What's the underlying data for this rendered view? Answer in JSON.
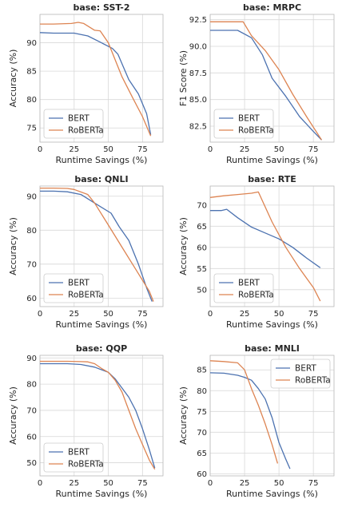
{
  "colors": {
    "BERT": "#4c72b0",
    "RoBERTa": "#dd8452",
    "grid": "#d8d8d8",
    "frame": "#b8b8b8"
  },
  "chart_data": [
    {
      "type": "line",
      "title": "base: SST-2",
      "xlabel": "Runtime Savings (%)",
      "ylabel": "Accuracy (%)",
      "xlim": [
        0,
        90
      ],
      "ylim": [
        72.5,
        95
      ],
      "xticks": [
        0,
        25,
        50,
        75
      ],
      "yticks": [
        75,
        80,
        85,
        90
      ],
      "grid": true,
      "legend": "lower-left",
      "series": [
        {
          "name": "BERT",
          "x": [
            0,
            10,
            25,
            35,
            45,
            53,
            57,
            65,
            72,
            78,
            81
          ],
          "y": [
            91.8,
            91.7,
            91.7,
            91.2,
            90.0,
            89.0,
            88.0,
            83.5,
            81.0,
            77.5,
            73.8
          ]
        },
        {
          "name": "RoBERTa",
          "x": [
            0,
            10,
            23,
            28,
            32,
            40,
            44,
            50,
            55,
            60,
            68,
            75,
            81
          ],
          "y": [
            93.3,
            93.3,
            93.4,
            93.6,
            93.4,
            92.2,
            92.1,
            90.0,
            87.0,
            84.0,
            80.2,
            77.0,
            73.6
          ]
        }
      ]
    },
    {
      "type": "line",
      "title": "base: MRPC",
      "xlabel": "Runtime Savings (%)",
      "ylabel": "F1 Score (%)",
      "xlim": [
        0,
        90
      ],
      "ylim": [
        81,
        93
      ],
      "xticks": [
        0,
        25,
        50,
        75
      ],
      "yticks": [
        82.5,
        85.0,
        87.5,
        90.0,
        92.5
      ],
      "grid": true,
      "legend": "lower-left",
      "series": [
        {
          "name": "BERT",
          "x": [
            0,
            10,
            20,
            30,
            38,
            45,
            55,
            65,
            75,
            81
          ],
          "y": [
            91.5,
            91.5,
            91.5,
            90.8,
            89.2,
            87.0,
            85.3,
            83.4,
            82.0,
            81.2
          ]
        },
        {
          "name": "RoBERTa",
          "x": [
            0,
            10,
            24,
            30,
            40,
            50,
            60,
            70,
            81
          ],
          "y": [
            92.3,
            92.3,
            92.3,
            91.0,
            89.6,
            87.8,
            85.5,
            83.4,
            81.2
          ]
        }
      ]
    },
    {
      "type": "line",
      "title": "base: QNLI",
      "xlabel": "Runtime Savings (%)",
      "ylabel": "Accuracy (%)",
      "xlim": [
        0,
        90
      ],
      "ylim": [
        57.5,
        93
      ],
      "xticks": [
        0,
        25,
        50,
        75
      ],
      "yticks": [
        60,
        70,
        80,
        90
      ],
      "grid": true,
      "legend": "lower-left",
      "series": [
        {
          "name": "BERT",
          "x": [
            0,
            10,
            20,
            30,
            40,
            52,
            58,
            65,
            72,
            78,
            82
          ],
          "y": [
            91.5,
            91.5,
            91.3,
            90.5,
            88.0,
            85.0,
            81.0,
            77.0,
            70.0,
            63.0,
            59.0
          ]
        },
        {
          "name": "RoBERTa",
          "x": [
            0,
            10,
            20,
            25,
            35,
            40,
            50,
            60,
            70,
            80,
            83
          ],
          "y": [
            92.4,
            92.4,
            92.3,
            92.0,
            90.5,
            88.0,
            81.5,
            75.0,
            68.5,
            62.0,
            59.0
          ]
        }
      ]
    },
    {
      "type": "line",
      "title": "base: RTE",
      "xlabel": "Runtime Savings (%)",
      "ylabel": "Accuracy (%)",
      "xlim": [
        0,
        90
      ],
      "ylim": [
        46,
        74.5
      ],
      "xticks": [
        0,
        25,
        50,
        75
      ],
      "yticks": [
        50,
        55,
        60,
        65,
        70
      ],
      "grid": true,
      "legend": "lower-left",
      "series": [
        {
          "name": "BERT",
          "x": [
            0,
            8,
            12,
            20,
            30,
            40,
            50,
            60,
            70,
            80
          ],
          "y": [
            68.7,
            68.7,
            69.0,
            67.0,
            64.8,
            63.4,
            62.0,
            60.0,
            57.5,
            55.2
          ]
        },
        {
          "name": "RoBERTa",
          "x": [
            0,
            10,
            20,
            30,
            35,
            45,
            55,
            65,
            75,
            80
          ],
          "y": [
            71.8,
            72.2,
            72.5,
            72.8,
            73.1,
            66.0,
            60.0,
            55.0,
            50.5,
            47.3
          ]
        }
      ]
    },
    {
      "type": "line",
      "title": "base: QQP",
      "xlabel": "Runtime Savings (%)",
      "ylabel": "Accuracy (%)",
      "xlim": [
        0,
        90
      ],
      "ylim": [
        45,
        91
      ],
      "xticks": [
        0,
        25,
        50,
        75
      ],
      "yticks": [
        50,
        60,
        70,
        80,
        90
      ],
      "grid": true,
      "legend": "lower-left",
      "series": [
        {
          "name": "BERT",
          "x": [
            0,
            10,
            20,
            30,
            40,
            50,
            55,
            60,
            65,
            70,
            75,
            80,
            84
          ],
          "y": [
            87.8,
            87.8,
            87.8,
            87.5,
            86.5,
            84.5,
            82.0,
            78.5,
            75.0,
            70.0,
            63.0,
            55.0,
            48.0
          ]
        },
        {
          "name": "RoBERTa",
          "x": [
            0,
            10,
            20,
            30,
            35,
            40,
            45,
            50,
            55,
            60,
            65,
            70,
            75,
            80,
            84
          ],
          "y": [
            88.7,
            88.7,
            88.7,
            88.6,
            88.5,
            87.8,
            86.0,
            84.5,
            81.5,
            77.0,
            70.0,
            63.0,
            57.0,
            51.0,
            47.5
          ]
        }
      ]
    },
    {
      "type": "line",
      "title": "base: MNLI",
      "xlabel": "Runtime Savings (%)",
      "ylabel": "Accuracy (%)",
      "xlim": [
        0,
        90
      ],
      "ylim": [
        59.5,
        88.5
      ],
      "xticks": [
        0,
        25,
        50,
        75
      ],
      "yticks": [
        60,
        65,
        70,
        75,
        80,
        85
      ],
      "grid": true,
      "legend": "upper-right",
      "series": [
        {
          "name": "BERT",
          "x": [
            0,
            10,
            20,
            25,
            30,
            35,
            40,
            45,
            50,
            55,
            58
          ],
          "y": [
            84.3,
            84.2,
            83.7,
            83.2,
            82.5,
            80.5,
            78.0,
            73.5,
            67.5,
            63.5,
            61.2
          ]
        },
        {
          "name": "RoBERTa",
          "x": [
            0,
            10,
            20,
            25,
            30,
            35,
            40,
            45,
            49
          ],
          "y": [
            87.2,
            87.0,
            86.7,
            85.0,
            80.5,
            76.5,
            72.0,
            67.0,
            62.5
          ]
        }
      ]
    }
  ]
}
